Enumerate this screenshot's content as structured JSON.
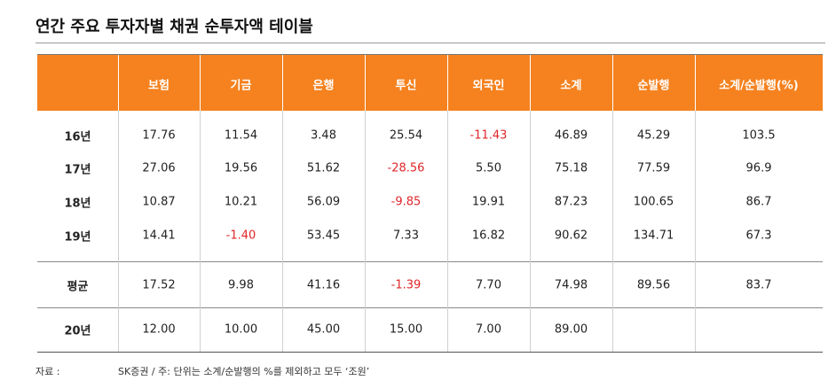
{
  "title": "연간 주요 투자자별 채권 순투자액 테이블",
  "table": {
    "header": [
      "보험",
      "기금",
      "은행",
      "투신",
      "외국인",
      "소계",
      "순발행",
      "소계/순발행(%)"
    ],
    "rows": [
      {
        "label": "16년",
        "cells": [
          "17.76",
          "11.54",
          "3.48",
          "25.54",
          "-11.43",
          "46.89",
          "45.29",
          "103.5"
        ]
      },
      {
        "label": "17년",
        "cells": [
          "27.06",
          "19.56",
          "51.62",
          "-28.56",
          "5.50",
          "75.18",
          "77.59",
          "96.9"
        ]
      },
      {
        "label": "18년",
        "cells": [
          "10.87",
          "10.21",
          "56.09",
          "-9.85",
          "19.91",
          "87.23",
          "100.65",
          "86.7"
        ]
      },
      {
        "label": "19년",
        "cells": [
          "14.41",
          "-1.40",
          "53.45",
          "7.33",
          "16.82",
          "90.62",
          "134.71",
          "67.3"
        ]
      },
      {
        "label": "평균",
        "cells": [
          "17.52",
          "9.98",
          "41.16",
          "-1.39",
          "7.70",
          "74.98",
          "89.56",
          "83.7"
        ]
      },
      {
        "label": "20년",
        "cells": [
          "12.00",
          "10.00",
          "45.00",
          "15.00",
          "7.00",
          "89.00"
        ]
      }
    ]
  },
  "footnote": {
    "label": "자료 :",
    "text": "SK증권 / 주: 단위는 소계/순발행의 %를 제외하고 모두 ‘조원’"
  }
}
